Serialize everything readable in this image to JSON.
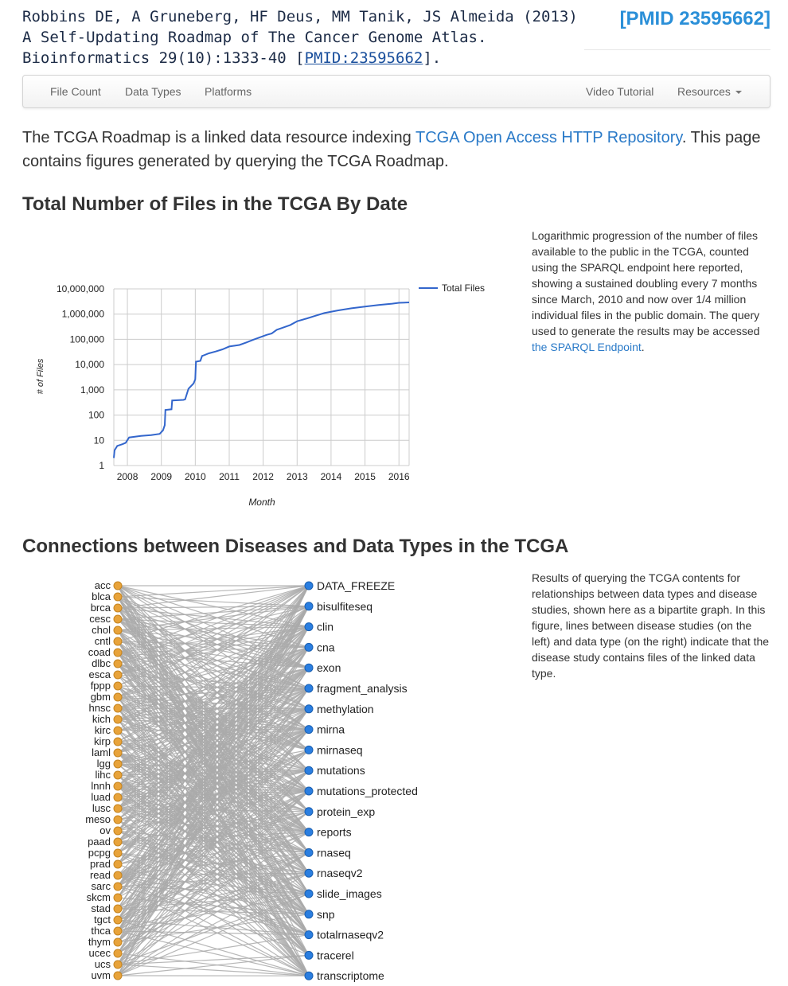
{
  "citation": {
    "text": "Robbins DE, A Gruneberg, HF Deus, MM Tanik, JS Almeida (2013) A Self-Updating Roadmap of The Cancer Genome Atlas. Bioinformatics 29(10):1333-40 [",
    "link_text": "PMID:23595662",
    "suffix": "]."
  },
  "pmid_badge": "[PMID 23595662]",
  "navbar": {
    "left_items": [
      "File Count",
      "Data Types",
      "Platforms"
    ],
    "video": "Video Tutorial",
    "resources": "Resources"
  },
  "intro": {
    "before": "The TCGA Roadmap is a linked data resource indexing ",
    "link": "TCGA Open Access HTTP Repository",
    "after": ". This page contains figures generated by querying the TCGA Roadmap."
  },
  "section1": {
    "title": "Total Number of Files in the TCGA By Date",
    "description": "Logarithmic progression of the number of files available to the public in the TCGA, counted using the SPARQL endpoint here reported, showing a sustained doubling every 7 months since March, 2010 and now over 1/4 million individual files in the public domain. The query used to generate the results may be accessed ",
    "description_link": "the SPARQL Endpoint",
    "description_end": "."
  },
  "chart_data": {
    "type": "line",
    "title": "",
    "xlabel": "Month",
    "ylabel": "# of Files",
    "y_scale": "log",
    "ylim": [
      1,
      10000000
    ],
    "xlim": [
      2007.6,
      2016.3
    ],
    "grid": true,
    "legend_position": "right",
    "x_ticks": [
      "2008",
      "2009",
      "2010",
      "2011",
      "2012",
      "2013",
      "2014",
      "2015",
      "2016"
    ],
    "y_ticks": [
      "1",
      "10",
      "100",
      "1,000",
      "10,000",
      "100,000",
      "1,000,000",
      "10,000,000"
    ],
    "series": [
      {
        "name": "Total Files",
        "color": "#3366cc",
        "x": [
          2007.6,
          2007.62,
          2007.7,
          2007.85,
          2007.95,
          2008.05,
          2008.4,
          2008.7,
          2008.95,
          2009.05,
          2009.1,
          2009.12,
          2009.3,
          2009.32,
          2009.65,
          2009.7,
          2009.8,
          2009.95,
          2010.0,
          2010.02,
          2010.15,
          2010.2,
          2010.4,
          2010.6,
          2010.8,
          2011.0,
          2011.3,
          2011.5,
          2011.7,
          2011.9,
          2012.1,
          2012.25,
          2012.4,
          2012.55,
          2012.8,
          2013.0,
          2013.3,
          2013.5,
          2013.8,
          2014.2,
          2014.6,
          2015.0,
          2015.4,
          2015.8,
          2016.0,
          2016.3
        ],
        "y": [
          2,
          4,
          6,
          7,
          8,
          13,
          15,
          16,
          18,
          25,
          40,
          160,
          170,
          380,
          400,
          420,
          1100,
          1800,
          2600,
          13000,
          14000,
          22000,
          28000,
          33000,
          40000,
          52000,
          60000,
          75000,
          95000,
          120000,
          150000,
          170000,
          240000,
          280000,
          370000,
          520000,
          680000,
          830000,
          1100000,
          1400000,
          1700000,
          2000000,
          2300000,
          2600000,
          2800000,
          2900000
        ]
      }
    ]
  },
  "section2": {
    "title": "Connections between Diseases and Data Types in the TCGA",
    "description": "Results of querying the TCGA contents for relationships between data types and disease studies, shown here as a bipartite graph. In this figure, lines between disease studies (on the left) and data type (on the right) indicate that the disease study contains files of the linked data type."
  },
  "bipartite": {
    "left_color": "#e8a33a",
    "right_color": "#2a7ee0",
    "edge_color": "#aaaaaa",
    "diseases": [
      "acc",
      "blca",
      "brca",
      "cesc",
      "chol",
      "cntl",
      "coad",
      "dlbc",
      "esca",
      "fppp",
      "gbm",
      "hnsc",
      "kich",
      "kirc",
      "kirp",
      "laml",
      "lgg",
      "lihc",
      "lnnh",
      "luad",
      "lusc",
      "meso",
      "ov",
      "paad",
      "pcpg",
      "prad",
      "read",
      "sarc",
      "skcm",
      "stad",
      "tgct",
      "thca",
      "thym",
      "ucec",
      "ucs",
      "uvm"
    ],
    "data_types": [
      "DATA_FREEZE",
      "bisulfiteseq",
      "clin",
      "cna",
      "exon",
      "fragment_analysis",
      "methylation",
      "mirna",
      "mirnaseq",
      "mutations",
      "mutations_protected",
      "protein_exp",
      "reports",
      "rnaseq",
      "rnaseqv2",
      "slide_images",
      "snp",
      "totalrnaseqv2",
      "tracerel",
      "transcriptome"
    ]
  }
}
